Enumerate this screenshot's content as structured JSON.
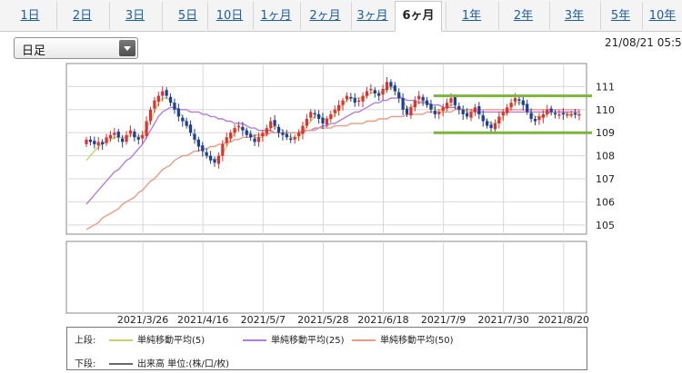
{
  "tabs": [
    {
      "label": "1日"
    },
    {
      "label": "2日"
    },
    {
      "label": "3日"
    },
    {
      "label": "5日"
    },
    {
      "label": "10日"
    },
    {
      "label": "1ヶ月"
    },
    {
      "label": "2ヶ月"
    },
    {
      "label": "3ヶ月"
    },
    {
      "label": "6ヶ月"
    },
    {
      "label": "1年"
    },
    {
      "label": "2年"
    },
    {
      "label": "3年"
    },
    {
      "label": "5年"
    },
    {
      "label": "10年"
    }
  ],
  "active_tab": "6ヶ月",
  "controls": {
    "period_select": {
      "value": "日足"
    },
    "timestamp": "21/08/21 05:5"
  },
  "legend": {
    "upper_label": "上段:",
    "lower_label": "下段:",
    "items": [
      {
        "name": "単純移動平均(5)",
        "color": "#c8d26e"
      },
      {
        "name": "単純移動平均(25)",
        "color": "#b57be0"
      },
      {
        "name": "単純移動平均(50)",
        "color": "#ee9a80"
      }
    ],
    "volume": {
      "name": "出来高 単位:(株/口/枚)",
      "color": "#666666"
    }
  },
  "colors": {
    "up_candle": "#e03030",
    "down_candle": "#1c3e9c",
    "band_line": "#7db43c"
  },
  "chart_data": {
    "type": "candlestick",
    "title": "",
    "y_ticks": [
      105,
      106,
      107,
      108,
      109,
      110,
      111
    ],
    "ylim": [
      104.6,
      112.0
    ],
    "x_tick_labels": [
      "2021/3/26",
      "2021/4/16",
      "2021/5/7",
      "2021/5/28",
      "2021/6/18",
      "2021/7/9",
      "2021/7/30",
      "2021/8/20"
    ],
    "x_tick_index": [
      15,
      30,
      45,
      60,
      75,
      90,
      105,
      120
    ],
    "n_bars": 124,
    "closes": [
      108.7,
      108.6,
      108.5,
      108.6,
      108.5,
      108.8,
      108.9,
      109.0,
      108.8,
      108.6,
      108.9,
      109.1,
      108.8,
      108.7,
      108.9,
      109.5,
      110.0,
      110.4,
      110.6,
      110.8,
      110.6,
      110.3,
      110.0,
      109.7,
      109.5,
      109.3,
      109.0,
      108.7,
      108.4,
      108.2,
      108.0,
      107.8,
      107.7,
      108.0,
      108.5,
      108.8,
      109.0,
      109.2,
      109.3,
      109.1,
      108.9,
      108.8,
      108.6,
      108.8,
      109.0,
      109.2,
      109.5,
      109.3,
      109.0,
      108.9,
      108.8,
      108.7,
      108.8,
      109.0,
      109.3,
      109.6,
      109.9,
      109.8,
      109.6,
      109.4,
      109.6,
      109.8,
      110.0,
      110.2,
      110.4,
      110.6,
      110.5,
      110.3,
      110.4,
      110.6,
      110.8,
      110.9,
      110.7,
      110.6,
      110.9,
      111.2,
      111.0,
      110.8,
      110.5,
      110.0,
      109.8,
      110.1,
      110.4,
      110.6,
      110.4,
      110.2,
      110.0,
      109.8,
      109.9,
      110.1,
      110.3,
      110.5,
      110.2,
      110.0,
      109.8,
      109.7,
      109.9,
      110.1,
      109.8,
      109.5,
      109.3,
      109.2,
      109.4,
      109.7,
      109.9,
      110.1,
      110.3,
      110.5,
      110.4,
      110.2,
      109.9,
      109.6,
      109.5,
      109.7,
      109.8,
      110.0,
      109.9,
      109.8,
      109.8,
      109.8,
      109.8,
      109.8,
      109.8,
      109.8
    ],
    "series": [
      {
        "name": "単純移動平均(5)",
        "values": [
          107.8,
          108.0,
          108.2,
          108.4,
          108.5,
          108.6,
          108.7,
          108.8,
          108.8,
          108.8,
          108.8,
          108.9,
          108.9,
          108.8,
          108.9,
          109.2,
          109.5,
          109.9,
          110.3,
          110.5,
          110.5,
          110.4,
          110.2,
          109.9,
          109.7,
          109.4,
          109.1,
          108.8,
          108.5,
          108.3,
          108.0,
          107.9,
          107.8,
          107.9,
          108.1,
          108.4,
          108.7,
          109.0,
          109.2,
          109.2,
          109.1,
          108.9,
          108.8,
          108.8,
          108.8,
          109.0,
          109.2,
          109.3,
          109.2,
          109.1,
          108.9,
          108.8,
          108.8,
          108.8,
          109.0,
          109.3,
          109.5,
          109.7,
          109.8,
          109.6,
          109.6,
          109.6,
          109.8,
          110.0,
          110.2,
          110.4,
          110.5,
          110.5,
          110.5,
          110.5,
          110.6,
          110.7,
          110.8,
          110.7,
          110.8,
          110.9,
          111.0,
          110.9,
          110.7,
          110.4,
          110.1,
          110.1,
          110.2,
          110.3,
          110.4,
          110.3,
          110.2,
          110.0,
          110.0,
          110.0,
          110.1,
          110.2,
          110.2,
          110.1,
          110.0,
          109.9,
          109.9,
          109.9,
          109.9,
          109.7,
          109.5,
          109.4,
          109.4,
          109.5,
          109.7,
          109.9,
          110.1,
          110.3,
          110.3,
          110.3,
          110.1,
          109.9,
          109.7,
          109.7,
          109.7,
          109.8,
          109.9,
          109.9,
          109.9,
          109.9,
          109.8,
          109.8,
          109.8,
          109.8
        ]
      },
      {
        "name": "単純移動平均(25)",
        "values": [
          105.9,
          106.1,
          106.3,
          106.5,
          106.7,
          106.9,
          107.1,
          107.3,
          107.4,
          107.6,
          107.8,
          107.9,
          108.1,
          108.3,
          108.5,
          108.8,
          109.1,
          109.4,
          109.7,
          109.9,
          110.0,
          110.1,
          110.1,
          110.0,
          110.0,
          110.0,
          109.9,
          109.9,
          109.9,
          109.8,
          109.8,
          109.7,
          109.7,
          109.6,
          109.6,
          109.5,
          109.5,
          109.4,
          109.4,
          109.4,
          109.3,
          109.2,
          109.2,
          109.1,
          109.1,
          109.1,
          109.1,
          109.0,
          109.0,
          109.0,
          109.0,
          109.0,
          109.0,
          109.0,
          109.0,
          109.1,
          109.1,
          109.2,
          109.2,
          109.3,
          109.3,
          109.4,
          109.4,
          109.5,
          109.6,
          109.7,
          109.8,
          109.9,
          109.9,
          110.0,
          110.1,
          110.2,
          110.3,
          110.3,
          110.4,
          110.4,
          110.5,
          110.5,
          110.5,
          110.5,
          110.4,
          110.4,
          110.4,
          110.3,
          110.3,
          110.3,
          110.2,
          110.2,
          110.2,
          110.1,
          110.1,
          110.1,
          110.1,
          110.0,
          110.0,
          110.0,
          110.0,
          109.9,
          109.9,
          109.9,
          109.9,
          109.9,
          109.9,
          109.9,
          109.9,
          109.9,
          109.9,
          109.9,
          109.9,
          109.9,
          109.9,
          109.9,
          109.9,
          109.9,
          109.9,
          109.9,
          109.9,
          109.9,
          109.9,
          109.9,
          109.9,
          109.9,
          109.9,
          109.9
        ]
      },
      {
        "name": "単純移動平均(50)",
        "values": [
          104.8,
          104.9,
          105.0,
          105.1,
          105.3,
          105.4,
          105.5,
          105.6,
          105.7,
          105.9,
          106.0,
          106.1,
          106.2,
          106.4,
          106.5,
          106.7,
          106.9,
          107.0,
          107.2,
          107.4,
          107.5,
          107.6,
          107.8,
          107.9,
          108.0,
          108.0,
          108.1,
          108.2,
          108.2,
          108.3,
          108.3,
          108.4,
          108.4,
          108.5,
          108.5,
          108.6,
          108.6,
          108.7,
          108.7,
          108.8,
          108.8,
          108.8,
          108.9,
          108.9,
          108.9,
          108.9,
          109.0,
          109.0,
          109.0,
          109.0,
          109.0,
          109.0,
          109.0,
          109.0,
          109.1,
          109.1,
          109.1,
          109.1,
          109.2,
          109.2,
          109.2,
          109.2,
          109.3,
          109.3,
          109.3,
          109.3,
          109.4,
          109.4,
          109.4,
          109.4,
          109.5,
          109.5,
          109.5,
          109.6,
          109.6,
          109.6,
          109.7,
          109.7,
          109.7,
          109.7,
          109.8,
          109.8,
          109.8,
          109.8,
          109.8,
          109.9,
          109.9,
          109.9,
          109.9,
          109.9,
          109.9,
          109.9,
          110.0,
          110.0,
          110.0,
          110.0,
          110.0,
          110.0,
          110.0,
          110.0,
          110.0,
          110.0,
          110.0,
          110.0,
          110.0,
          110.0,
          110.0,
          110.0,
          110.0,
          110.0,
          110.0,
          110.0,
          110.0,
          110.0,
          110.0,
          110.0,
          110.0,
          110.0,
          110.0,
          110.0,
          110.0,
          110.0,
          110.0,
          110.0
        ]
      }
    ],
    "band_lines": [
      {
        "value": 110.6,
        "from_index": 88,
        "to_index": 124
      },
      {
        "value": 109.0,
        "from_index": 88,
        "to_index": 124
      }
    ],
    "grid": true
  }
}
